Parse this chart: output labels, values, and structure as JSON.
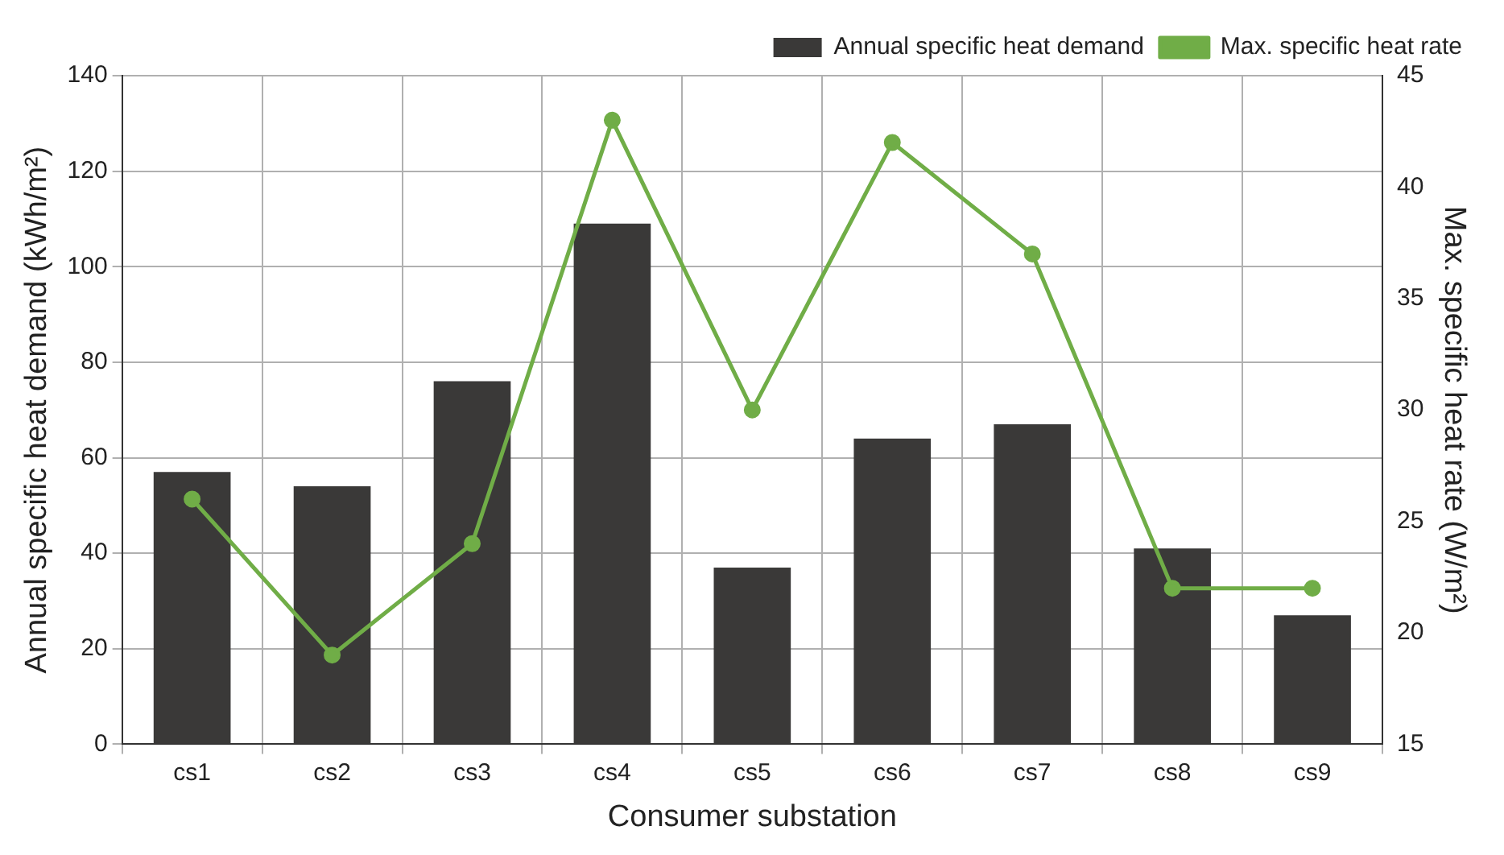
{
  "chart_data": {
    "type": "bar",
    "xlabel": "Consumer substation",
    "ylabel": "Annual specific heat demand (kWh/m²)",
    "y2label": "Max. specific heat rate (W/m²)",
    "categories": [
      "cs1",
      "cs2",
      "cs3",
      "cs4",
      "cs5",
      "cs6",
      "cs7",
      "cs8",
      "cs9"
    ],
    "series": [
      {
        "name": "Annual specific heat demand",
        "color": "#3a3938",
        "values": [
          57,
          54,
          76,
          109,
          37,
          64,
          67,
          41,
          27
        ]
      },
      {
        "name": "Max. specific heat rate",
        "type": "line",
        "axis": "y2",
        "color": "#70ad47",
        "values": [
          26,
          19,
          24,
          43,
          30,
          42,
          37,
          22,
          22
        ]
      }
    ],
    "ylim": [
      0,
      140
    ],
    "yticks": [
      0,
      20,
      40,
      60,
      80,
      100,
      120,
      140
    ],
    "y2lim": [
      15,
      45
    ],
    "y2ticks": [
      15,
      20,
      25,
      30,
      35,
      40,
      45
    ],
    "grid": true,
    "legend": "top right",
    "marker": "circle",
    "line_style": "solid"
  }
}
